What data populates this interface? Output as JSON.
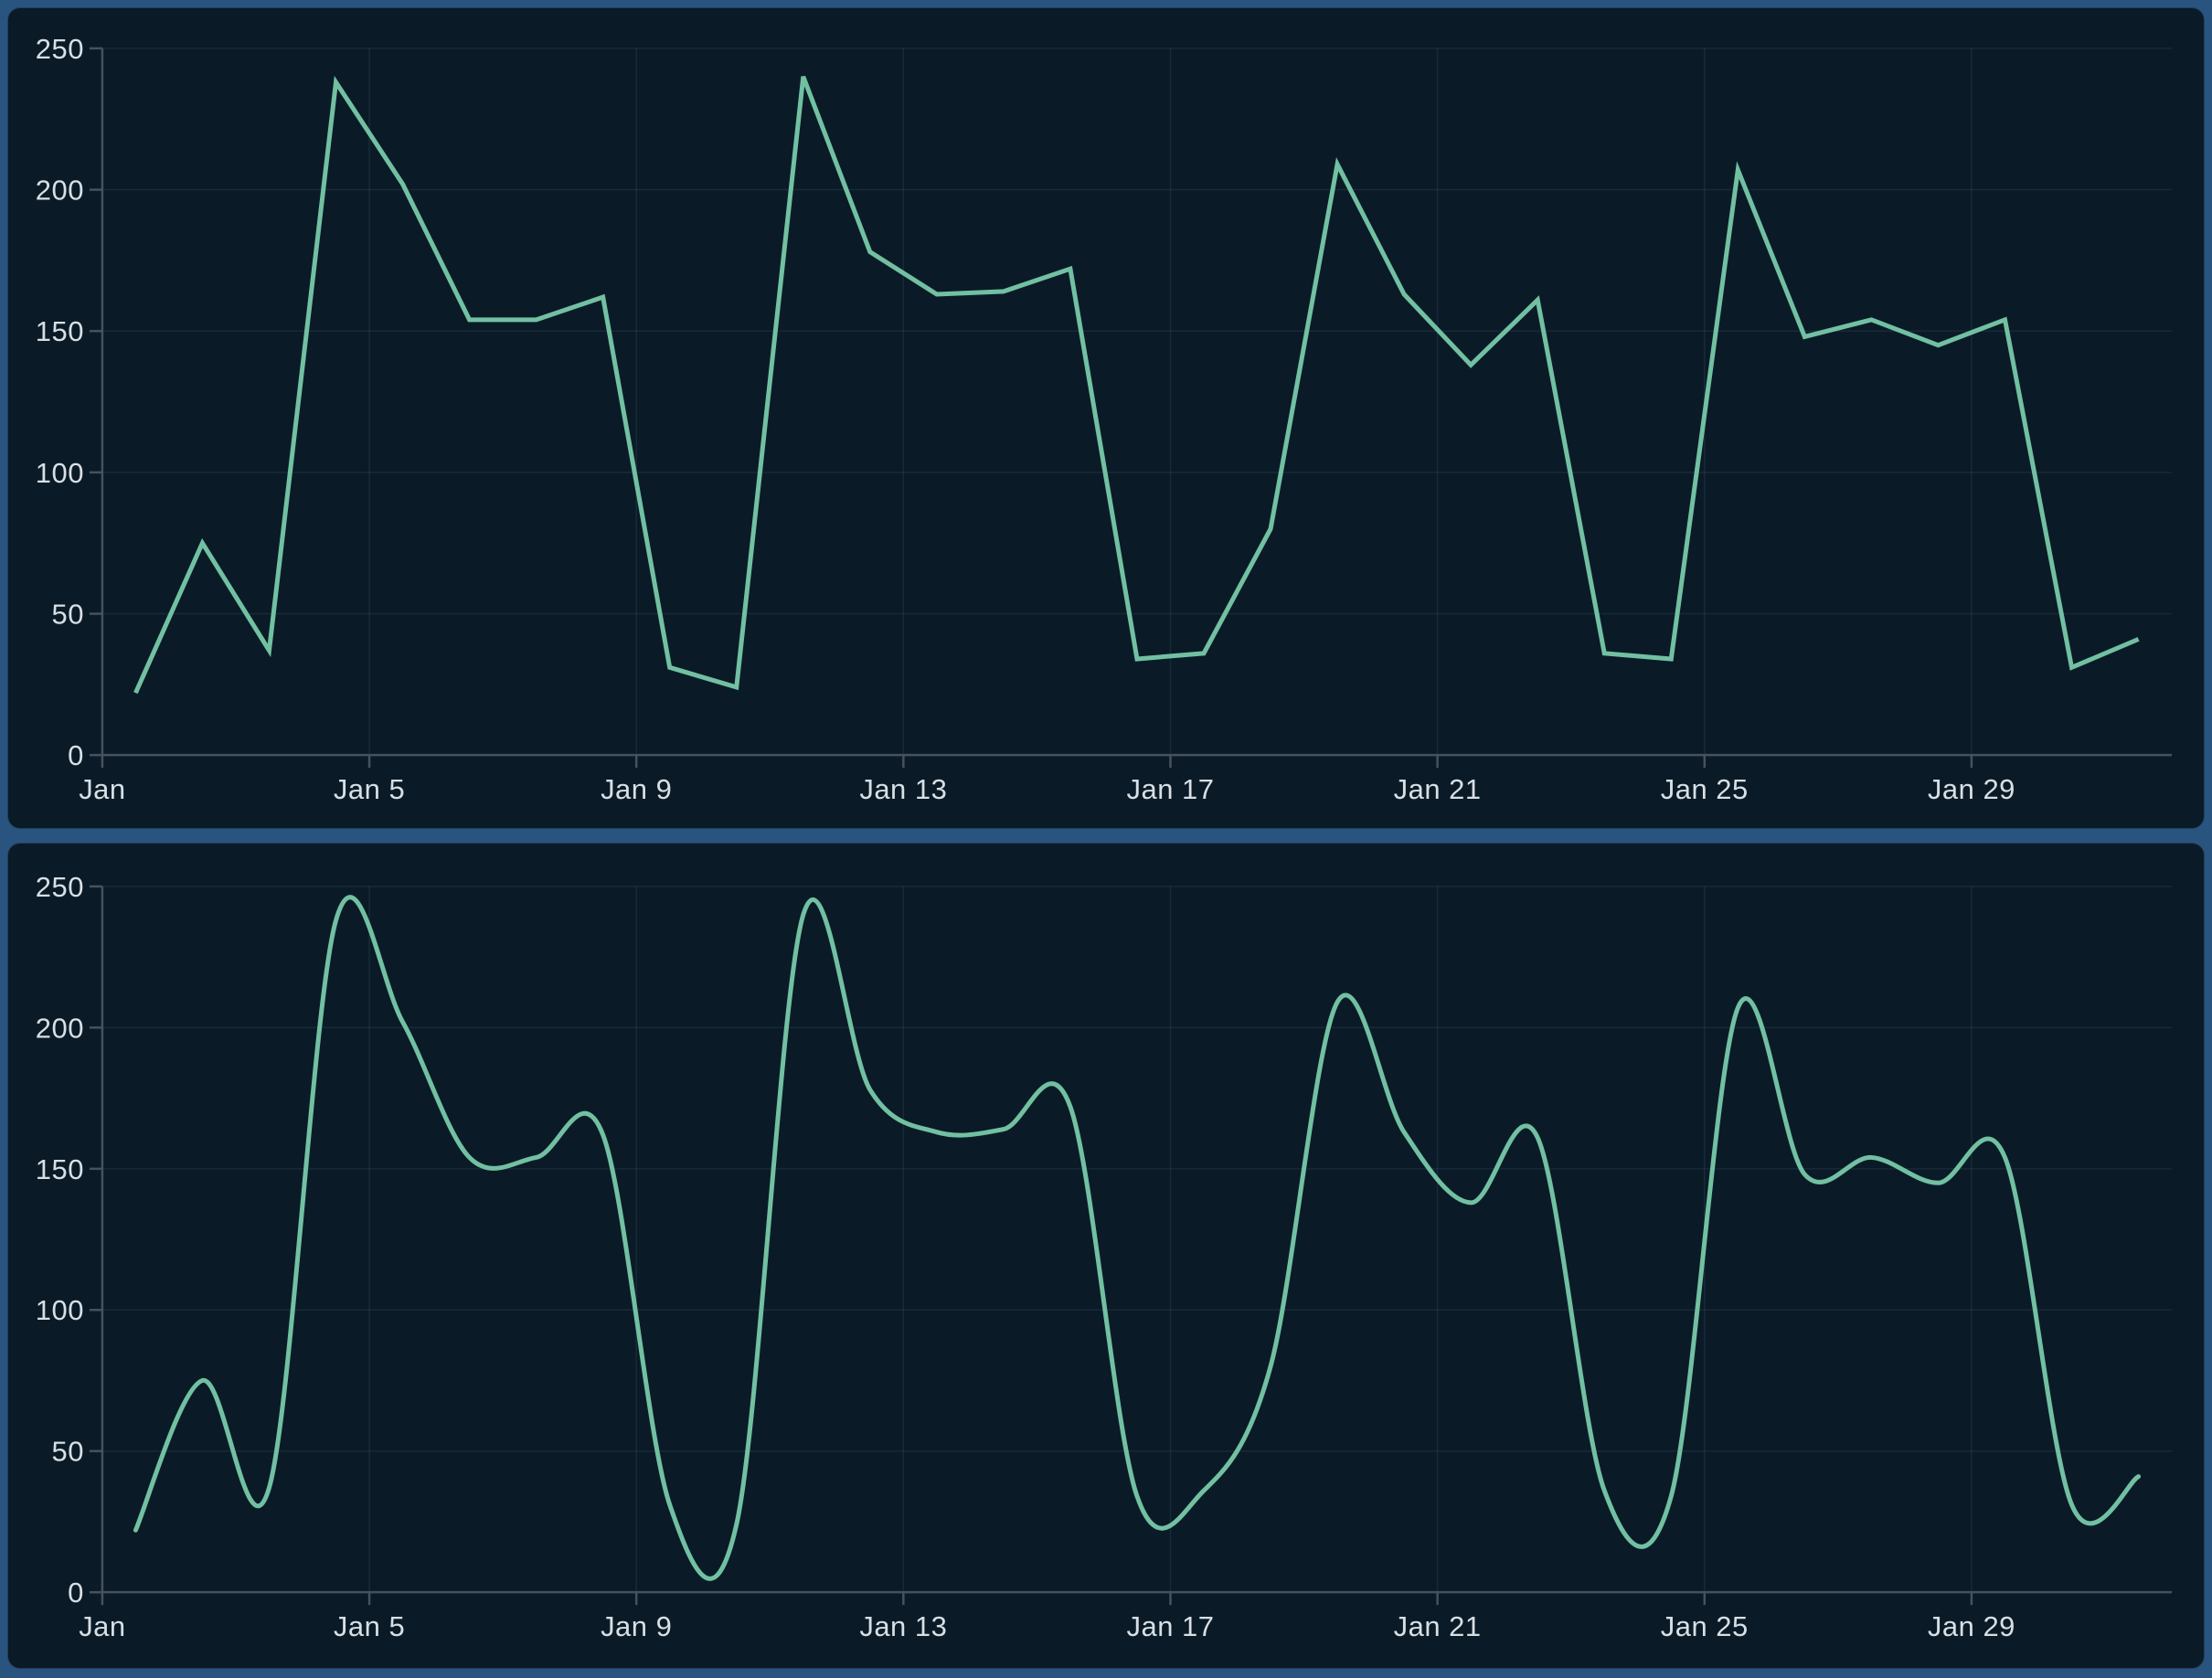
{
  "page": {
    "background_color": "#2a5480"
  },
  "panel": {
    "background_color": "#0a1b27",
    "border_color": "#23405a"
  },
  "chart_style": {
    "line_color": "#72c0a2",
    "line_width": 5,
    "grid_color": "rgba(170,200,228,0.09)",
    "axis_color": "#46525e",
    "label_color": "#d8dfe5",
    "font_size": 31
  },
  "chart_data": [
    {
      "type": "line",
      "smooth": false,
      "title": "",
      "xlabel": "",
      "ylabel": "",
      "legend_position": "none",
      "grid": true,
      "ylim": [
        0,
        250
      ],
      "y_ticks": [
        0,
        50,
        100,
        150,
        200,
        250
      ],
      "x_tick_labels": [
        "Jan",
        "Jan 5",
        "Jan 9",
        "Jan 13",
        "Jan 17",
        "Jan 21",
        "Jan 25",
        "Jan 29"
      ],
      "x_tick_days": [
        1,
        5,
        9,
        13,
        17,
        21,
        25,
        29
      ],
      "x": [
        "Jan 1",
        "Jan 2",
        "Jan 3",
        "Jan 4",
        "Jan 5",
        "Jan 6",
        "Jan 7",
        "Jan 8",
        "Jan 9",
        "Jan 10",
        "Jan 11",
        "Jan 12",
        "Jan 13",
        "Jan 14",
        "Jan 15",
        "Jan 16",
        "Jan 17",
        "Jan 18",
        "Jan 19",
        "Jan 20",
        "Jan 21",
        "Jan 22",
        "Jan 23",
        "Jan 24",
        "Jan 25",
        "Jan 26",
        "Jan 27",
        "Jan 28",
        "Jan 29",
        "Jan 30",
        "Jan 31"
      ],
      "values": [
        22,
        75,
        37,
        238,
        202,
        154,
        154,
        162,
        31,
        24,
        240,
        178,
        163,
        164,
        172,
        34,
        36,
        80,
        209,
        163,
        138,
        161,
        36,
        34,
        207,
        148,
        154,
        145,
        154,
        31,
        41
      ]
    },
    {
      "type": "line",
      "smooth": true,
      "title": "",
      "xlabel": "",
      "ylabel": "",
      "legend_position": "none",
      "grid": true,
      "ylim": [
        0,
        250
      ],
      "y_ticks": [
        0,
        50,
        100,
        150,
        200,
        250
      ],
      "x_tick_labels": [
        "Jan",
        "Jan 5",
        "Jan 9",
        "Jan 13",
        "Jan 17",
        "Jan 21",
        "Jan 25",
        "Jan 29"
      ],
      "x_tick_days": [
        1,
        5,
        9,
        13,
        17,
        21,
        25,
        29
      ],
      "x": [
        "Jan 1",
        "Jan 2",
        "Jan 3",
        "Jan 4",
        "Jan 5",
        "Jan 6",
        "Jan 7",
        "Jan 8",
        "Jan 9",
        "Jan 10",
        "Jan 11",
        "Jan 12",
        "Jan 13",
        "Jan 14",
        "Jan 15",
        "Jan 16",
        "Jan 17",
        "Jan 18",
        "Jan 19",
        "Jan 20",
        "Jan 21",
        "Jan 22",
        "Jan 23",
        "Jan 24",
        "Jan 25",
        "Jan 26",
        "Jan 27",
        "Jan 28",
        "Jan 29",
        "Jan 30",
        "Jan 31"
      ],
      "values": [
        22,
        75,
        37,
        238,
        202,
        154,
        154,
        162,
        31,
        24,
        240,
        178,
        163,
        164,
        172,
        34,
        36,
        80,
        209,
        163,
        138,
        161,
        36,
        34,
        207,
        148,
        154,
        145,
        154,
        31,
        41
      ]
    }
  ]
}
